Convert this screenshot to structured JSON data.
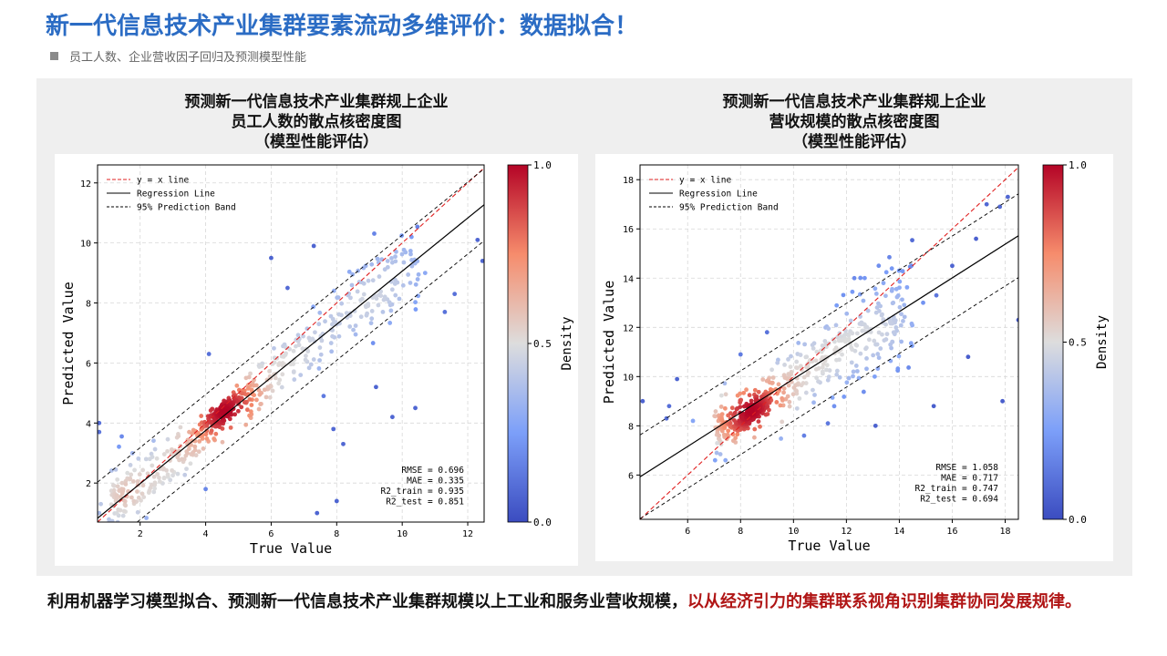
{
  "header": {
    "title": "新一代信息技术产业集群要素流动多维评价：数据拟合！",
    "subtitle": "员工人数、企业营收因子回归及预测模型性能"
  },
  "charts": [
    {
      "title_lines": [
        "预测新一代信息技术产业集群规上企业",
        "员工人数的散点核密度图",
        "（模型性能评估）"
      ]
    },
    {
      "title_lines": [
        "预测新一代信息技术产业集群规上企业",
        "营收规模的散点核密度图",
        "（模型性能评估）"
      ]
    }
  ],
  "chart_data": [
    {
      "type": "scatter",
      "xlabel": "True Value",
      "ylabel": "Predicted Value",
      "xlim": [
        0.7,
        12.5
      ],
      "ylim": [
        0.7,
        12.6
      ],
      "xticks": [
        2,
        4,
        6,
        8,
        10,
        12
      ],
      "yticks": [
        2,
        4,
        6,
        8,
        10,
        12
      ],
      "grid": true,
      "legend_position": "top-left",
      "legend": [
        "y = x line",
        "Regression Line",
        "95% Prediction Band"
      ],
      "regression": {
        "slope": 0.885,
        "intercept": 0.21
      },
      "prediction_band_halfwidth": 1.2,
      "colorbar": {
        "label": "Density",
        "ticks": [
          "0.0",
          "0.5",
          "1.0"
        ],
        "colormap": "coolwarm"
      },
      "metrics": [
        "RMSE = 0.696",
        "MAE = 0.335",
        "R2_train = 0.935",
        "R2_test = 0.851"
      ],
      "points_seed": 11,
      "points_core": {
        "center": [
          4.5,
          4.4
        ],
        "spread": 0.35,
        "count": 140
      },
      "points_cloud": {
        "x_range": [
          1.0,
          10.5
        ],
        "count": 460,
        "noise": 0.55
      },
      "outliers": [
        [
          7.3,
          9.9
        ],
        [
          6.0,
          9.5
        ],
        [
          10.7,
          9.0
        ],
        [
          11.3,
          7.7
        ],
        [
          12.3,
          10.1
        ],
        [
          12.45,
          9.4
        ],
        [
          7.6,
          4.9
        ],
        [
          7.9,
          3.8
        ],
        [
          8.0,
          1.4
        ],
        [
          7.4,
          1.0
        ],
        [
          9.7,
          4.2
        ],
        [
          10.4,
          4.5
        ],
        [
          6.5,
          8.5
        ],
        [
          4.1,
          6.3
        ],
        [
          4.0,
          1.8
        ],
        [
          5.4,
          4.6
        ],
        [
          5.7,
          5.0
        ],
        [
          0.75,
          4.0
        ],
        [
          0.75,
          3.7
        ],
        [
          0.75,
          1.0
        ],
        [
          0.8,
          1.3
        ],
        [
          11.6,
          8.3
        ],
        [
          8.2,
          3.3
        ],
        [
          9.2,
          5.2
        ]
      ]
    },
    {
      "type": "scatter",
      "xlabel": "True Value",
      "ylabel": "Predicted Value",
      "xlim": [
        4.2,
        18.5
      ],
      "ylim": [
        4.2,
        18.6
      ],
      "xticks": [
        6,
        8,
        10,
        12,
        14,
        16,
        18
      ],
      "yticks": [
        6,
        8,
        10,
        12,
        14,
        16,
        18
      ],
      "grid": true,
      "legend_position": "top-left",
      "legend": [
        "y = x line",
        "Regression Line",
        "95% Prediction Band"
      ],
      "regression": {
        "slope": 0.685,
        "intercept": 3.05
      },
      "prediction_band_halfwidth": 1.7,
      "colorbar": {
        "label": "Density",
        "ticks": [
          "0.0",
          "0.5",
          "1.0"
        ],
        "colormap": "coolwarm"
      },
      "metrics": [
        "RMSE = 1.058",
        "MAE = 0.717",
        "R2_train = 0.747",
        "R2_test = 0.694"
      ],
      "points_seed": 23,
      "points_core": {
        "center": [
          8.4,
          8.5
        ],
        "spread": 0.45,
        "count": 170
      },
      "points_cloud": {
        "x_range": [
          7.0,
          14.5
        ],
        "count": 420,
        "noise": 0.75
      },
      "outliers": [
        [
          5.3,
          8.8
        ],
        [
          5.2,
          8.3
        ],
        [
          5.6,
          9.9
        ],
        [
          4.3,
          9.0
        ],
        [
          13.1,
          8.0
        ],
        [
          15.3,
          8.8
        ],
        [
          16.6,
          10.8
        ],
        [
          17.9,
          9.0
        ],
        [
          18.5,
          12.3
        ],
        [
          16.9,
          15.6
        ],
        [
          17.3,
          17.0
        ],
        [
          17.8,
          16.9
        ],
        [
          18.1,
          17.3
        ],
        [
          15.4,
          13.3
        ],
        [
          16.0,
          14.5
        ],
        [
          13.4,
          13.8
        ],
        [
          10.4,
          7.6
        ],
        [
          11.3,
          8.1
        ],
        [
          9.8,
          10.7
        ],
        [
          9.0,
          11.8
        ],
        [
          12.3,
          14.0
        ],
        [
          14.9,
          13.0
        ],
        [
          8.0,
          10.9
        ],
        [
          6.2,
          8.2
        ]
      ]
    }
  ],
  "caption": {
    "normal": "利用机器学习模型拟合、预测新一代信息技术产业集群规模以上工业和服务业营收规模，",
    "highlight": "以从经济引力的集群联系视角识别集群协同发展规律。"
  }
}
